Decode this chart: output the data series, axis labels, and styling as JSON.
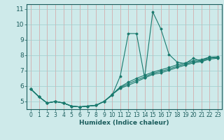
{
  "title": "",
  "xlabel": "Humidex (Indice chaleur)",
  "bg_color": "#ceeaea",
  "line_color": "#1a7a6e",
  "grid_color": "#aed4d4",
  "grid_color_v": "#e8b0b0",
  "axis_color": "#1a5c5c",
  "xlim": [
    -0.5,
    23.5
  ],
  "ylim": [
    4.5,
    11.3
  ],
  "yticks": [
    5,
    6,
    7,
    8,
    9,
    10,
    11
  ],
  "xticks": [
    0,
    1,
    2,
    3,
    4,
    5,
    6,
    7,
    8,
    9,
    10,
    11,
    12,
    13,
    14,
    15,
    16,
    17,
    18,
    19,
    20,
    21,
    22,
    23
  ],
  "lines": [
    {
      "x": [
        0,
        1,
        2,
        3,
        4,
        5,
        6,
        7,
        8,
        9,
        10,
        11,
        12,
        13,
        14,
        15,
        16,
        17,
        18,
        19,
        20,
        21,
        22,
        23
      ],
      "y": [
        5.8,
        5.3,
        4.9,
        5.0,
        4.9,
        4.7,
        4.65,
        4.7,
        4.75,
        5.0,
        5.4,
        6.65,
        9.4,
        9.4,
        6.55,
        10.8,
        9.7,
        8.05,
        7.55,
        7.45,
        7.8,
        7.6,
        7.9,
        7.8
      ]
    },
    {
      "x": [
        0,
        1,
        2,
        3,
        4,
        5,
        6,
        7,
        8,
        9,
        10,
        11,
        12,
        13,
        14,
        15,
        16,
        17,
        18,
        19,
        20,
        21,
        22,
        23
      ],
      "y": [
        5.8,
        5.3,
        4.9,
        5.0,
        4.9,
        4.7,
        4.65,
        4.7,
        4.75,
        5.0,
        5.45,
        5.95,
        6.25,
        6.5,
        6.7,
        6.9,
        7.05,
        7.2,
        7.38,
        7.5,
        7.65,
        7.72,
        7.87,
        7.9
      ]
    },
    {
      "x": [
        0,
        1,
        2,
        3,
        4,
        5,
        6,
        7,
        8,
        9,
        10,
        11,
        12,
        13,
        14,
        15,
        16,
        17,
        18,
        19,
        20,
        21,
        22,
        23
      ],
      "y": [
        5.8,
        5.3,
        4.9,
        5.0,
        4.9,
        4.7,
        4.65,
        4.7,
        4.75,
        5.0,
        5.45,
        5.9,
        6.15,
        6.38,
        6.6,
        6.82,
        6.95,
        7.1,
        7.28,
        7.42,
        7.57,
        7.65,
        7.8,
        7.85
      ]
    },
    {
      "x": [
        0,
        1,
        2,
        3,
        4,
        5,
        6,
        7,
        8,
        9,
        10,
        11,
        12,
        13,
        14,
        15,
        16,
        17,
        18,
        19,
        20,
        21,
        22,
        23
      ],
      "y": [
        5.8,
        5.3,
        4.9,
        5.0,
        4.9,
        4.7,
        4.65,
        4.7,
        4.75,
        5.0,
        5.45,
        5.85,
        6.05,
        6.28,
        6.52,
        6.75,
        6.85,
        7.02,
        7.2,
        7.35,
        7.5,
        7.58,
        7.74,
        7.8
      ]
    }
  ]
}
